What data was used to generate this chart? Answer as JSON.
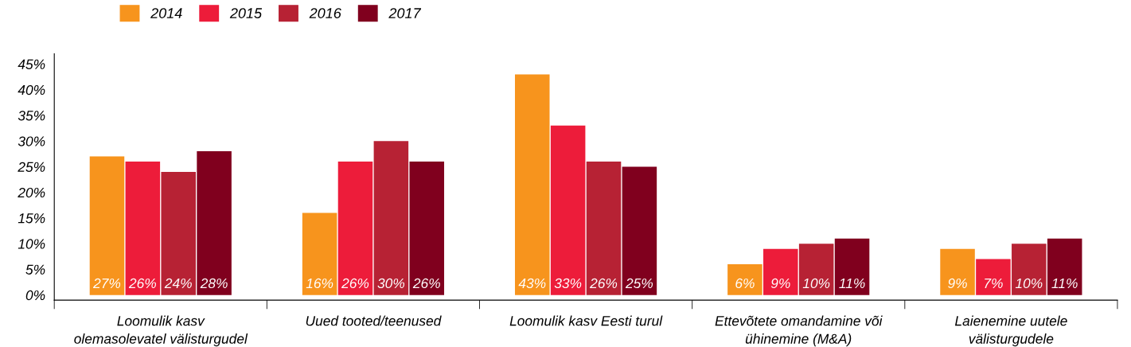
{
  "chart_data": {
    "type": "bar",
    "categories": [
      "Loomulik kasv\nolemasolevatel välisturgudel",
      "Uued tooted/teenused",
      "Loomulik kasv Eesti turul",
      "Ettevõtete omandamine või\nühinemine (M&A)",
      "Laienemine uutele\nvälisturgudele"
    ],
    "series": [
      {
        "name": "2014",
        "color": "#f7941d",
        "values": [
          27,
          16,
          43,
          6,
          9
        ],
        "value_labels": [
          "27%",
          "16%",
          "43%",
          "6%",
          "9%"
        ]
      },
      {
        "name": "2015",
        "color": "#ed1c3a",
        "values": [
          26,
          26,
          33,
          9,
          7
        ],
        "value_labels": [
          "26%",
          "26%",
          "33%",
          "9%",
          "7%"
        ]
      },
      {
        "name": "2016",
        "color": "#b72234",
        "values": [
          24,
          30,
          26,
          10,
          10
        ],
        "value_labels": [
          "24%",
          "30%",
          "26%",
          "10%",
          "10%"
        ]
      },
      {
        "name": "2017",
        "color": "#80001e",
        "values": [
          28,
          26,
          25,
          11,
          11
        ],
        "value_labels": [
          "28%",
          "26%",
          "25%",
          "11%",
          "11%"
        ]
      }
    ],
    "ylim": [
      -1,
      47
    ],
    "yticks": [
      {
        "value": 0,
        "label": "0%"
      },
      {
        "value": 5,
        "label": "5%"
      },
      {
        "value": 10,
        "label": "10%"
      },
      {
        "value": 15,
        "label": "15%"
      },
      {
        "value": 20,
        "label": "20%"
      },
      {
        "value": 25,
        "label": "25%"
      },
      {
        "value": 30,
        "label": "30%"
      },
      {
        "value": 35,
        "label": "35%"
      },
      {
        "value": 40,
        "label": "40%"
      },
      {
        "value": 45,
        "label": "45%"
      }
    ],
    "grid": false,
    "legend": "top left"
  }
}
